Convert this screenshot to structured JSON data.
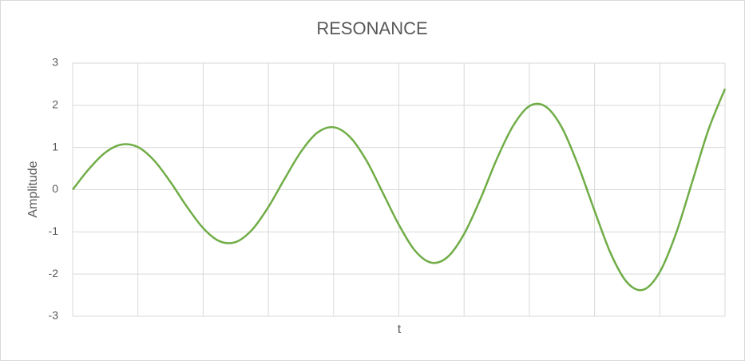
{
  "chart_data": {
    "type": "line",
    "title": "RESONANCE",
    "x_label": "t",
    "y_label": "Amplitude",
    "series": [
      {
        "name": "Amplitude",
        "color": "#70ad47",
        "values": [
          0,
          0.49,
          0.88,
          1.07,
          1.01,
          0.69,
          0.18,
          -0.4,
          -0.91,
          -1.22,
          -1.24,
          -0.95,
          -0.41,
          0.26,
          0.9,
          1.35,
          1.48,
          1.25,
          0.7,
          -0.06,
          -0.83,
          -1.45,
          -1.73,
          -1.59,
          -1.05,
          -0.22,
          0.72,
          1.51,
          1.98,
          1.97,
          1.47,
          0.57,
          -0.5,
          -1.52,
          -2.2,
          -2.37,
          -1.95,
          -1.03,
          0.2,
          1.44,
          2.39
        ]
      }
    ],
    "ylim": [
      -3,
      3
    ],
    "yticks": [
      -3,
      -2,
      -1,
      0,
      1,
      2,
      3
    ],
    "grid": true
  }
}
